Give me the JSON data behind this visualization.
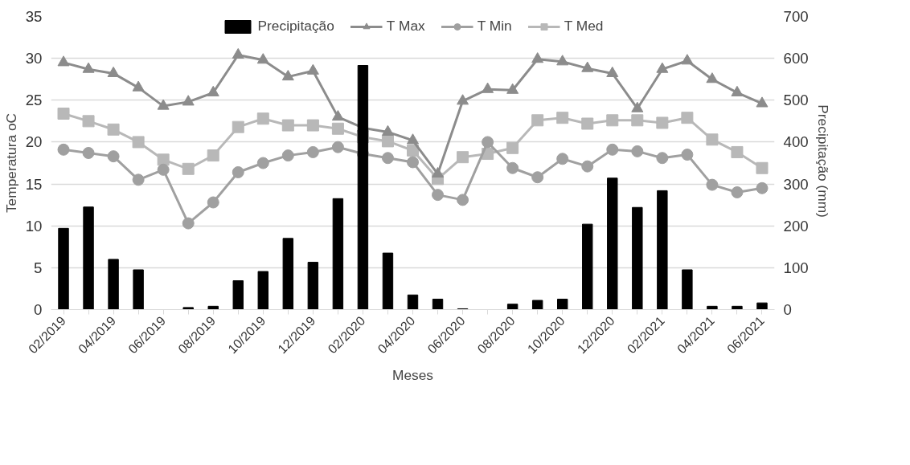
{
  "chart_data": {
    "type": "line",
    "xlabel": "Meses",
    "ylabel": "Temperatura oC",
    "y2label": "Precipitação  (mm)",
    "categories": [
      "02/2019",
      null,
      "04/2019",
      null,
      "06/2019",
      null,
      "08/2019",
      null,
      "10/2019",
      null,
      "12/2019",
      null,
      "02/2020",
      null,
      "04/2020",
      null,
      "06/2020",
      null,
      "08/2020",
      null,
      "10/2020",
      null,
      "12/2020",
      null,
      "02/2021",
      null,
      "04/2021",
      null,
      "06/2021"
    ],
    "series": [
      {
        "name": "Precipitação",
        "type": "bar",
        "axis": "y2",
        "color": "#000000",
        "values": [
          194,
          245,
          120,
          95,
          0,
          5,
          8,
          69,
          91,
          170,
          113,
          265,
          583,
          135,
          35,
          25,
          2,
          0,
          13,
          22,
          25,
          204,
          314,
          244,
          284,
          95,
          8,
          8,
          16
        ]
      },
      {
        "name": "T Max",
        "marker": "triangle",
        "color": "#8c8c8c",
        "values": [
          29.5,
          28.7,
          28.2,
          26.5,
          24.3,
          24.8,
          25.9,
          30.4,
          29.8,
          27.8,
          28.5,
          23.0,
          21.7,
          21.2,
          20.2,
          16.2,
          24.9,
          26.3,
          26.2,
          29.9,
          29.6,
          28.8,
          28.2,
          24.0,
          28.7,
          29.7,
          27.5,
          25.9,
          24.6
        ]
      },
      {
        "name": "T Min",
        "marker": "circle",
        "color": "#a0a0a0",
        "values": [
          19.1,
          18.7,
          18.3,
          15.5,
          16.7,
          10.3,
          12.8,
          16.4,
          17.5,
          18.4,
          18.8,
          19.4,
          18.6,
          18.1,
          17.6,
          13.7,
          13.1,
          20.0,
          16.9,
          15.8,
          18.0,
          17.1,
          19.1,
          18.9,
          18.1,
          18.5,
          14.9,
          14.0,
          14.5
        ]
      },
      {
        "name": "T Med",
        "marker": "square",
        "color": "#b8b8b8",
        "values": [
          23.4,
          22.5,
          21.5,
          20.0,
          17.9,
          16.8,
          18.4,
          21.8,
          22.8,
          22.0,
          22.0,
          21.6,
          20.6,
          20.1,
          19.0,
          15.6,
          18.2,
          18.6,
          19.3,
          22.6,
          22.9,
          22.2,
          22.6,
          22.6,
          22.3,
          22.9,
          20.3,
          18.8,
          16.9
        ]
      }
    ],
    "ylim": [
      0,
      35
    ],
    "yticks": [
      0,
      5,
      10,
      15,
      20,
      25,
      30,
      35
    ],
    "y2lim": [
      0,
      700
    ],
    "y2ticks": [
      0,
      100,
      200,
      300,
      400,
      500,
      600,
      700
    ],
    "grid": "y",
    "legend": "top"
  }
}
